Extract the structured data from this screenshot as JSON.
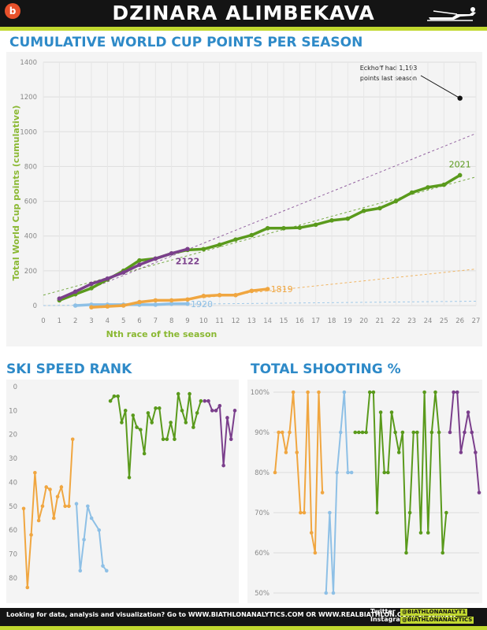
{
  "header": {
    "title": "DZINARA ALIMBEKAVA",
    "logo_letter": "b"
  },
  "colors": {
    "purple": "#7b3f8c",
    "green": "#5a9a1c",
    "orange": "#f0a640",
    "blue": "#8ec0e6",
    "title_blue": "#2e8ac8",
    "lime": "#c1d82f"
  },
  "chart_data": [
    {
      "type": "line",
      "title": "CUMULATIVE WORLD CUP POINTS PER SEASON",
      "xlabel": "Nth race of the season",
      "ylabel": "Total World Cup points (cumulative)",
      "xlim": [
        0,
        27
      ],
      "ylim": [
        0,
        1400
      ],
      "y_ticks": [
        0,
        200,
        400,
        600,
        800,
        1000,
        1200,
        1400
      ],
      "x_ticks": [
        0,
        1,
        2,
        3,
        4,
        5,
        6,
        7,
        8,
        9,
        10,
        11,
        12,
        13,
        14,
        15,
        16,
        17,
        18,
        19,
        20,
        21,
        22,
        23,
        24,
        25,
        26,
        27
      ],
      "grid": true,
      "series": [
        {
          "name": "2021",
          "color": "#5a9a1c",
          "x": [
            1,
            2,
            3,
            4,
            5,
            6,
            7,
            8,
            9,
            10,
            11,
            12,
            13,
            14,
            15,
            16,
            17,
            18,
            19,
            20,
            21,
            22,
            23,
            24,
            25,
            26
          ],
          "values": [
            30,
            65,
            100,
            150,
            200,
            260,
            270,
            300,
            320,
            325,
            350,
            380,
            405,
            445,
            445,
            448,
            465,
            490,
            500,
            545,
            560,
            600,
            650,
            680,
            695,
            750
          ]
        },
        {
          "name": "2122",
          "color": "#7b3f8c",
          "x": [
            1,
            2,
            3,
            4,
            5,
            6,
            7,
            8,
            9
          ],
          "values": [
            40,
            80,
            125,
            155,
            190,
            235,
            270,
            300,
            325
          ]
        },
        {
          "name": "1819",
          "color": "#f0a640",
          "x": [
            3,
            4,
            5,
            6,
            7,
            8,
            9,
            10,
            11,
            12,
            13,
            14
          ],
          "values": [
            -10,
            -5,
            0,
            20,
            30,
            30,
            35,
            55,
            60,
            60,
            85,
            95
          ]
        },
        {
          "name": "1920",
          "color": "#8ec0e6",
          "x": [
            2,
            3,
            4,
            5,
            6,
            7,
            8,
            9
          ],
          "values": [
            0,
            5,
            5,
            5,
            5,
            5,
            10,
            10
          ]
        }
      ],
      "trendlines": [
        {
          "color": "#7b3f8c",
          "from": [
            1,
            25
          ],
          "to": [
            27,
            990
          ]
        },
        {
          "color": "#5a9a1c",
          "from": [
            0,
            60
          ],
          "to": [
            27,
            740
          ]
        },
        {
          "color": "#f0a640",
          "from": [
            10,
            45
          ],
          "to": [
            27,
            210
          ]
        },
        {
          "color": "#8ec0e6",
          "from": [
            0,
            0
          ],
          "to": [
            27,
            25
          ]
        }
      ],
      "annotation": {
        "text_line1": "Eckhoff had 1,193",
        "text_line2": "points last season",
        "x": 26,
        "y": 1193
      }
    },
    {
      "type": "line",
      "title": "SKI SPEED RANK",
      "ylim": [
        0,
        85
      ],
      "y_inverted": true,
      "y_ticks": [
        0,
        10,
        20,
        30,
        40,
        50,
        60,
        70,
        80
      ],
      "grid": false,
      "series": [
        {
          "name": "1819",
          "color": "#f0a640",
          "values": [
            51,
            84,
            62,
            36,
            56,
            50,
            42,
            43,
            55,
            46,
            42,
            50,
            50,
            22
          ]
        },
        {
          "name": "1920",
          "color": "#8ec0e6",
          "values": [
            49,
            77,
            64,
            50,
            55,
            null,
            60,
            75,
            77
          ]
        },
        {
          "name": "2021",
          "color": "#5a9a1c",
          "values": [
            6,
            4,
            4,
            15,
            10,
            38,
            12,
            17,
            18,
            28,
            11,
            15,
            9,
            9,
            22,
            22,
            15,
            22,
            3,
            10,
            15,
            3,
            17,
            11,
            6
          ]
        },
        {
          "name": "2122",
          "color": "#7b3f8c",
          "values": [
            6,
            6,
            10,
            10,
            8,
            33,
            13,
            22,
            10
          ]
        }
      ]
    },
    {
      "type": "line",
      "title": "TOTAL SHOOTING %",
      "ylim": [
        50,
        100
      ],
      "y_ticks": [
        "100%",
        "90%",
        "80%",
        "70%",
        "60%",
        "50%"
      ],
      "grid": true,
      "series": [
        {
          "name": "1819",
          "color": "#f0a640",
          "values": [
            80,
            90,
            90,
            85,
            90,
            100,
            85,
            70,
            70,
            100,
            65,
            60,
            100,
            75
          ]
        },
        {
          "name": "1920",
          "color": "#8ec0e6",
          "values": [
            50,
            70,
            50,
            80,
            90,
            100,
            80,
            80
          ]
        },
        {
          "name": "2021",
          "color": "#5a9a1c",
          "values": [
            90,
            90,
            90,
            90,
            100,
            100,
            70,
            95,
            80,
            80,
            95,
            90,
            85,
            90,
            60,
            70,
            90,
            90,
            65,
            100,
            65,
            90,
            100,
            90,
            60,
            70
          ]
        },
        {
          "name": "2122",
          "color": "#7b3f8c",
          "values": [
            90,
            100,
            100,
            85,
            90,
            95,
            90,
            85,
            75
          ]
        }
      ]
    }
  ],
  "footer": {
    "text": "Looking for data, analysis and visualization? Go to WWW.BIATHLONANALYTICS.COM OR WWW.REALBIATHLON.COM, or connect",
    "twitter_label": "Twitter",
    "twitter_handle": "@BIATHLONANALYT1",
    "instagram_label": "Instagram",
    "instagram_handle": "@BIATHLONANALYTICS"
  }
}
